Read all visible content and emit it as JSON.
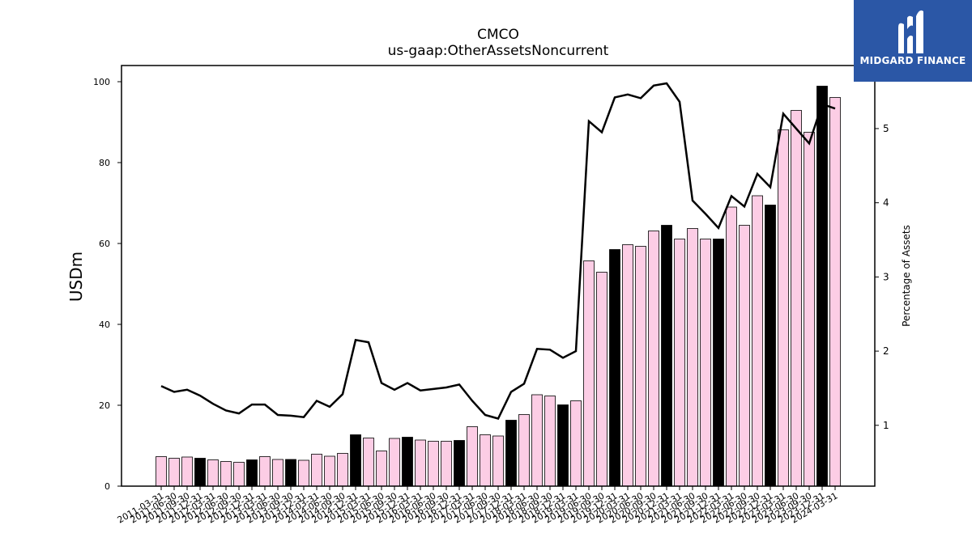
{
  "chart_data": {
    "type": "bar",
    "title": "CMCO",
    "subtitle": "us-gaap:OtherAssetsNoncurrent",
    "ylabel": "USDm",
    "y2label": "Percentage of Assets",
    "ylim": [
      0,
      104
    ],
    "y2lim": [
      0.18,
      5.85
    ],
    "yticks": [
      0,
      20,
      40,
      60,
      80,
      100
    ],
    "y2ticks": [
      1,
      2,
      3,
      4,
      5
    ],
    "categories": [
      "2011-03-31",
      "2011-06-30",
      "2011-09-30",
      "2011-12-31",
      "2012-03-31",
      "2012-06-30",
      "2012-09-30",
      "2012-12-31",
      "2013-03-31",
      "2013-06-30",
      "2013-09-30",
      "2013-12-31",
      "2014-03-31",
      "2014-06-30",
      "2014-09-30",
      "2014-12-31",
      "2015-03-31",
      "2015-06-30",
      "2015-09-30",
      "2015-12-31",
      "2016-03-31",
      "2016-06-30",
      "2016-09-30",
      "2016-12-31",
      "2017-03-31",
      "2017-06-30",
      "2017-09-30",
      "2017-12-31",
      "2018-03-31",
      "2018-06-30",
      "2018-09-30",
      "2018-12-31",
      "2019-03-31",
      "2019-06-30",
      "2019-09-30",
      "2019-12-31",
      "2020-03-31",
      "2020-06-30",
      "2020-09-30",
      "2020-12-31",
      "2021-03-31",
      "2021-06-30",
      "2021-09-30",
      "2021-12-31",
      "2022-03-31",
      "2022-06-30",
      "2022-09-30",
      "2022-12-31",
      "2023-03-31",
      "2023-06-30",
      "2023-09-30",
      "2023-12-31",
      "2024-03-31"
    ],
    "series": [
      {
        "kind": "bar",
        "axis": "left",
        "values": [
          7.3,
          6.9,
          7.2,
          6.9,
          6.5,
          6.1,
          5.9,
          6.5,
          7.3,
          6.6,
          6.6,
          6.4,
          7.9,
          7.4,
          8.1,
          12.7,
          11.9,
          8.7,
          11.8,
          12.1,
          11.4,
          11.1,
          11.1,
          11.3,
          14.7,
          12.7,
          12.4,
          16.3,
          17.7,
          22.6,
          22.3,
          20.1,
          21.1,
          55.7,
          52.9,
          58.5,
          59.7,
          59.3,
          63.1,
          64.5,
          61.1,
          63.7,
          61.1,
          61.1,
          69.0,
          64.5,
          71.8,
          69.5,
          88.1,
          92.9,
          87.5,
          98.9,
          96.1
        ],
        "highlight": [
          false,
          false,
          false,
          true,
          false,
          false,
          false,
          true,
          false,
          false,
          true,
          false,
          false,
          false,
          false,
          true,
          false,
          false,
          false,
          true,
          false,
          false,
          false,
          true,
          false,
          false,
          false,
          true,
          false,
          false,
          false,
          true,
          false,
          false,
          false,
          true,
          false,
          false,
          false,
          true,
          false,
          false,
          false,
          true,
          false,
          false,
          false,
          true,
          false,
          false,
          false,
          true,
          false
        ]
      },
      {
        "kind": "line",
        "axis": "right",
        "values": [
          1.53,
          1.45,
          1.48,
          1.4,
          1.29,
          1.2,
          1.16,
          1.28,
          1.28,
          1.14,
          1.13,
          1.11,
          1.33,
          1.25,
          1.42,
          2.15,
          2.12,
          1.57,
          1.48,
          1.57,
          1.47,
          1.49,
          1.51,
          1.55,
          1.33,
          1.14,
          1.09,
          1.45,
          1.56,
          2.03,
          2.02,
          1.91,
          2.0,
          5.1,
          4.95,
          5.42,
          5.46,
          5.41,
          5.58,
          5.61,
          5.36,
          4.03,
          3.85,
          3.66,
          4.09,
          3.95,
          4.39,
          4.21,
          5.2,
          5.0,
          4.8,
          5.33,
          5.27
        ]
      }
    ],
    "colors": {
      "bar": "#fccde5",
      "bar_highlight": "#000000",
      "line": "#000000",
      "axis": "#000000"
    },
    "grid": false,
    "legend": "none"
  },
  "logo": {
    "text": "MIDGARD FINANCE",
    "background": "#2b57a6"
  }
}
